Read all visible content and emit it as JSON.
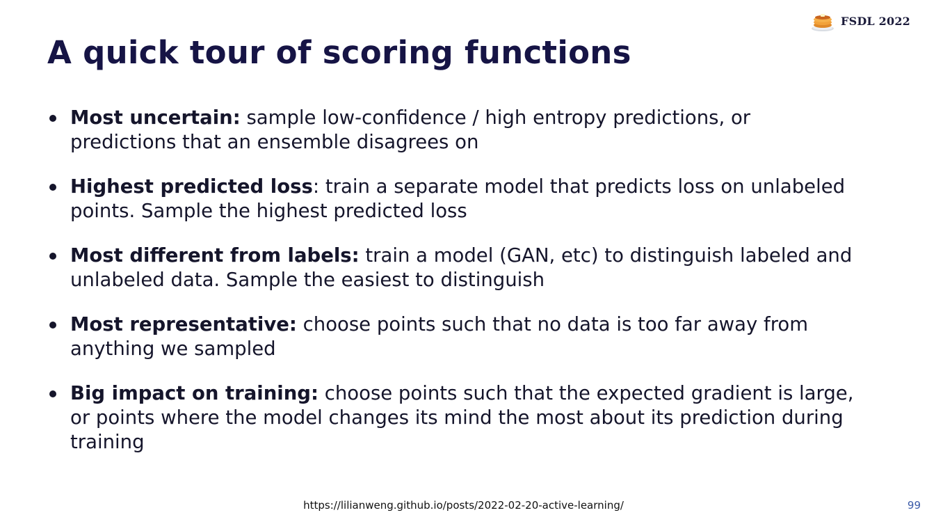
{
  "brand": {
    "icon": "pancakes-icon",
    "label": "FSDL 2022"
  },
  "slide": {
    "title": "A quick tour of scoring functions",
    "bullets": [
      {
        "term": "Most uncertain:",
        "text": " sample low-confidence / high entropy predictions, or predictions that an ensemble disagrees on"
      },
      {
        "term": "Highest predicted loss",
        "text": ": train a separate model that predicts loss on unlabeled points. Sample the highest predicted loss"
      },
      {
        "term": "Most different from labels:",
        "text": " train a model (GAN, etc) to distinguish labeled and unlabeled data. Sample the easiest to distinguish"
      },
      {
        "term": "Most representative:",
        "text": " choose points such that no data is too far away from anything we sampled"
      },
      {
        "term": "Big impact on training:",
        "text": " choose points such that the expected gradient is large, or points where the model changes its mind the most about its prediction during training"
      }
    ]
  },
  "footer": {
    "link": "https://lilianweng.github.io/posts/2022-02-20-active-learning/",
    "page_number": "99"
  },
  "colors": {
    "title": "#161445",
    "text": "#15152b",
    "page_number": "#3b5aa8",
    "pancake": "#f2a23a",
    "syrup": "#c9651e"
  }
}
